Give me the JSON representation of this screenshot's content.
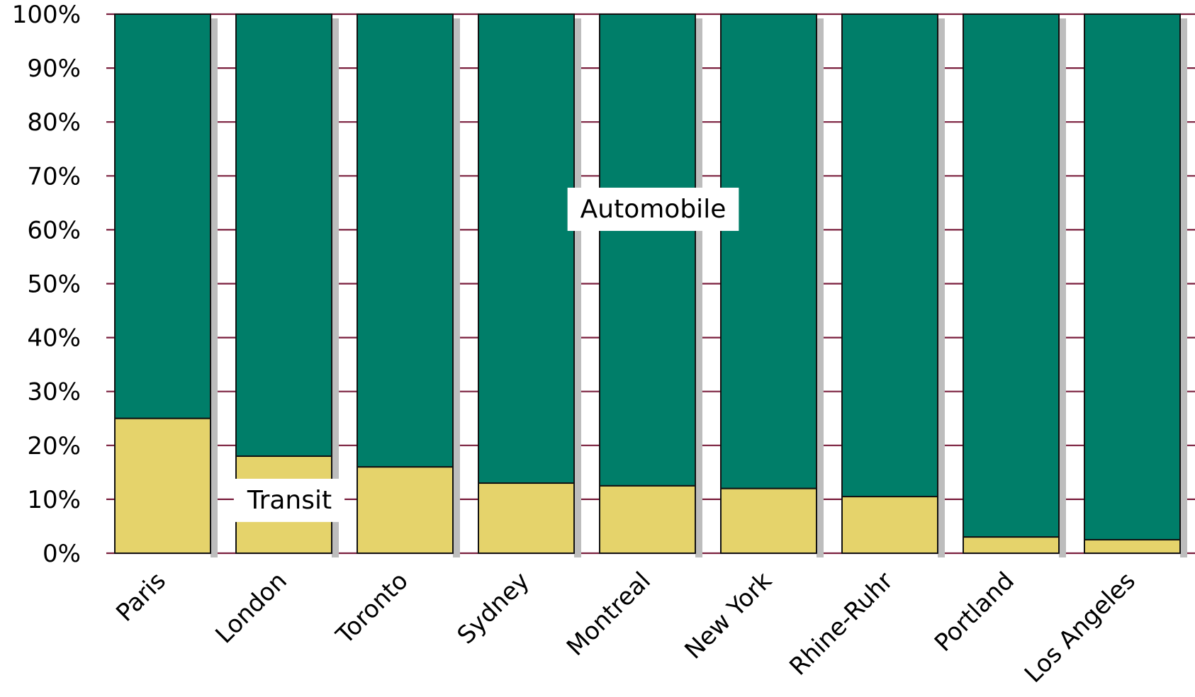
{
  "chart_data": {
    "type": "bar",
    "stacked": true,
    "categories": [
      "Paris",
      "London",
      "Toronto",
      "Sydney",
      "Montreal",
      "New York",
      "Rhine-Ruhr",
      "Portland",
      "Los Angeles"
    ],
    "series": [
      {
        "name": "Transit",
        "values": [
          25,
          18,
          16,
          13,
          12.5,
          12,
          10.5,
          3,
          2.5
        ]
      },
      {
        "name": "Automobile",
        "values": [
          75,
          82,
          84,
          87,
          87.5,
          88,
          89.5,
          97,
          97.5
        ]
      }
    ],
    "ylim": [
      0,
      100
    ],
    "yticks": [
      "0%",
      "10%",
      "20%",
      "30%",
      "40%",
      "50%",
      "60%",
      "70%",
      "80%",
      "90%",
      "100%"
    ],
    "yticks_values": [
      0,
      10,
      20,
      30,
      40,
      50,
      60,
      70,
      80,
      90,
      100
    ],
    "xlabel": "",
    "ylabel": "",
    "title": "",
    "grid": true,
    "colors": {
      "transit": "#e5d36b",
      "automobile": "#007e69",
      "gridline": "#7a1f3d",
      "bar_outline": "#111111",
      "shadow": "#bdbdbd"
    },
    "annotations": [
      {
        "text": "Automobile",
        "series": "Automobile",
        "category": "Montreal",
        "y": 64
      },
      {
        "text": "Transit",
        "series": "Transit",
        "category": "London",
        "y": 10
      }
    ]
  }
}
